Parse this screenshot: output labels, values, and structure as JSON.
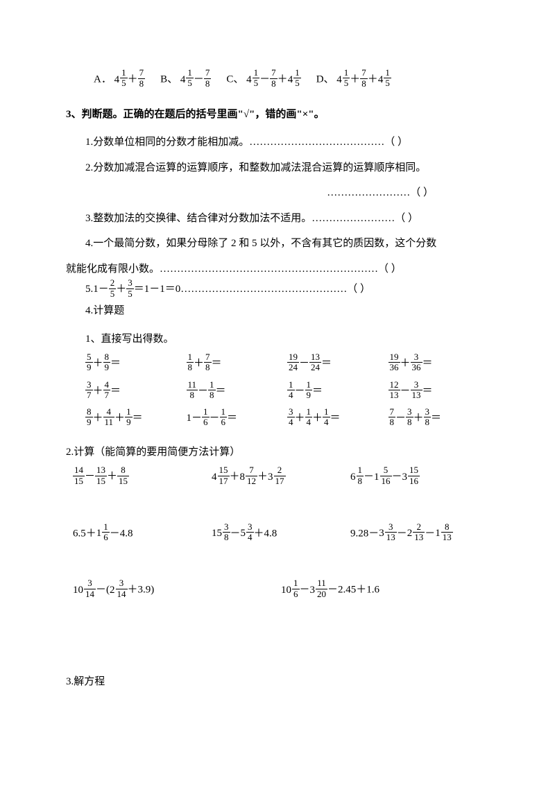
{
  "options": {
    "a_label": "A．",
    "b_label": "B、",
    "c_label": "C、",
    "d_label": "D、",
    "a": {
      "w1": "4",
      "n1": "1",
      "d1": "5",
      "op": "＋",
      "n2": "7",
      "d2": "8"
    },
    "b": {
      "w1": "4",
      "n1": "1",
      "d1": "5",
      "op": "－",
      "n2": "7",
      "d2": "8"
    },
    "c": {
      "w1": "4",
      "n1": "1",
      "d1": "5",
      "op1": "－",
      "n2": "7",
      "d2": "8",
      "op2": "＋",
      "w3": "4",
      "n3": "1",
      "d3": "5"
    },
    "d": {
      "w1": "4",
      "n1": "1",
      "d1": "5",
      "op1": "＋",
      "n2": "7",
      "d2": "8",
      "op2": "＋",
      "w3": "4",
      "n3": "1",
      "d3": "5"
    }
  },
  "sec3_title": "3、判断题。正确的在题后的括号里画\"√\"，错的画\"×\"。",
  "j1": "1.分数单位相同的分数才能相加减。…………………………………（    ）",
  "j2a": "2.分数加减混合运算的运算顺序，和整数加减法混合运算的运算顺序相同。",
  "j2b": "……………………（    ）",
  "j3": "3.整数加法的交换律、结合律对分数加法不适用。……………………（    ）",
  "j4a": "4.一个最简分数，如果分母除了 2 和 5 以外，不含有其它的质因数，这个分数",
  "j4b": "就能化成有限小数。………………………………………………………（    ）",
  "j5_prefix": "5.1－",
  "j5_f1": {
    "n": "2",
    "d": "5"
  },
  "j5_mid": "＋",
  "j5_f2": {
    "n": "3",
    "d": "5"
  },
  "j5_suffix": "＝1－1＝0…………………………………………（    ）",
  "sec4_title": "4.计算题",
  "direct_title": "1、直接写出得数。",
  "direct": [
    [
      {
        "n1": "5",
        "d1": "9",
        "op": "＋",
        "n2": "8",
        "d2": "9"
      },
      {
        "n1": "1",
        "d1": "8",
        "op": "＋",
        "n2": "7",
        "d2": "8"
      },
      {
        "n1": "19",
        "d1": "24",
        "op": "－",
        "n2": "13",
        "d2": "24"
      },
      {
        "n1": "19",
        "d1": "36",
        "op": "＋",
        "n2": "3",
        "d2": "36"
      }
    ],
    [
      {
        "n1": "3",
        "d1": "7",
        "op": "＋",
        "n2": "4",
        "d2": "7"
      },
      {
        "n1": "11",
        "d1": "8",
        "op": "－",
        "n2": "1",
        "d2": "8"
      },
      {
        "n1": "1",
        "d1": "4",
        "op": "－",
        "n2": "1",
        "d2": "9"
      },
      {
        "n1": "12",
        "d1": "13",
        "op": "－",
        "n2": "3",
        "d2": "13"
      }
    ],
    [
      {
        "n1": "8",
        "d1": "9",
        "op": "＋",
        "n2": "4",
        "d2": "11",
        "op2": "＋",
        "n3": "1",
        "d3": "9"
      },
      {
        "pre": "1－",
        "n1": "1",
        "d1": "6",
        "op": "－",
        "n2": "1",
        "d2": "6"
      },
      {
        "n1": "3",
        "d1": "4",
        "op": "＋",
        "n2": "1",
        "d2": "4",
        "op2": "＋",
        "n3": "1",
        "d3": "4"
      },
      {
        "n1": "7",
        "d1": "8",
        "op": "－",
        "n2": "3",
        "d2": "8",
        "op2": "＋",
        "n3": "3",
        "d3": "8"
      }
    ]
  ],
  "calc_title": "2.计算（能简算的要用简便方法计算）",
  "calc_rows": [
    [
      {
        "items": [
          {
            "f": {
              "n": "14",
              "d": "15"
            }
          },
          {
            "t": "－"
          },
          {
            "f": {
              "n": "13",
              "d": "15"
            }
          },
          {
            "t": "＋"
          },
          {
            "f": {
              "n": "8",
              "d": "15"
            }
          }
        ]
      },
      {
        "items": [
          {
            "m": {
              "w": "4",
              "n": "15",
              "d": "17"
            }
          },
          {
            "t": "＋"
          },
          {
            "m": {
              "w": "8",
              "n": "7",
              "d": "12"
            }
          },
          {
            "t": "＋"
          },
          {
            "m": {
              "w": "3",
              "n": "2",
              "d": "17"
            }
          }
        ]
      },
      {
        "items": [
          {
            "m": {
              "w": "6",
              "n": "1",
              "d": "8"
            }
          },
          {
            "t": "－"
          },
          {
            "m": {
              "w": "1",
              "n": "5",
              "d": "16"
            }
          },
          {
            "t": "－"
          },
          {
            "m": {
              "w": "3",
              "n": "15",
              "d": "16"
            }
          }
        ]
      }
    ],
    [
      {
        "items": [
          {
            "t": "6.5＋"
          },
          {
            "m": {
              "w": "1",
              "n": "1",
              "d": "6"
            }
          },
          {
            "t": "－4.8"
          }
        ]
      },
      {
        "items": [
          {
            "m": {
              "w": "15",
              "n": "3",
              "d": "8"
            }
          },
          {
            "t": "－"
          },
          {
            "m": {
              "w": "5",
              "n": "3",
              "d": "4"
            }
          },
          {
            "t": "＋4.8"
          }
        ]
      },
      {
        "items": [
          {
            "t": "9.28－"
          },
          {
            "m": {
              "w": "3",
              "n": "3",
              "d": "13"
            }
          },
          {
            "t": "－"
          },
          {
            "m": {
              "w": "2",
              "n": "2",
              "d": "13"
            }
          },
          {
            "t": "－"
          },
          {
            "m": {
              "w": "1",
              "n": "8",
              "d": "13"
            }
          }
        ]
      }
    ],
    [
      {
        "items": [
          {
            "m": {
              "w": "10",
              "n": "3",
              "d": "14"
            }
          },
          {
            "t": "－("
          },
          {
            "m": {
              "w": "2",
              "n": "3",
              "d": "14"
            }
          },
          {
            "t": "＋3.9)"
          }
        ]
      },
      {
        "items": [
          {
            "m": {
              "w": "10",
              "n": "1",
              "d": "6"
            }
          },
          {
            "t": "－"
          },
          {
            "m": {
              "w": "3",
              "n": "11",
              "d": "20"
            }
          },
          {
            "t": "－2.45＋1.6"
          }
        ]
      }
    ]
  ],
  "eq_title": "3.解方程"
}
